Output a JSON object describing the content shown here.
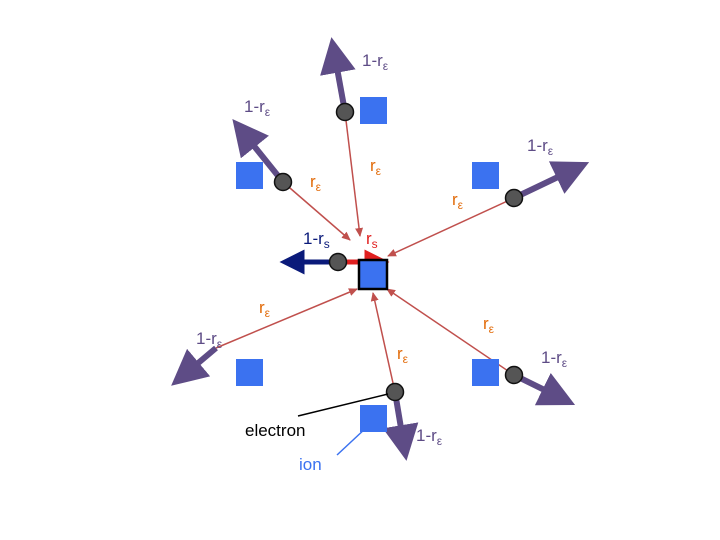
{
  "colors": {
    "purple": "#5e4c86",
    "orange": "#e26b0a",
    "red_line": "#c0504d",
    "red_arrow": "#e02020",
    "navy": "#0a1a7a",
    "ion_blue": "#3b72f0",
    "electron": "#555555",
    "ion_label": "#3b72f0"
  },
  "labels": {
    "escape_base": "1-r",
    "escape_sub": "ε",
    "return_base": "r",
    "return_sub": "ε",
    "self_escape_base": "1-r",
    "self_escape_sub": "s",
    "self_return_base": "r",
    "self_return_sub": "s",
    "electron": "electron",
    "ion": "ion"
  }
}
